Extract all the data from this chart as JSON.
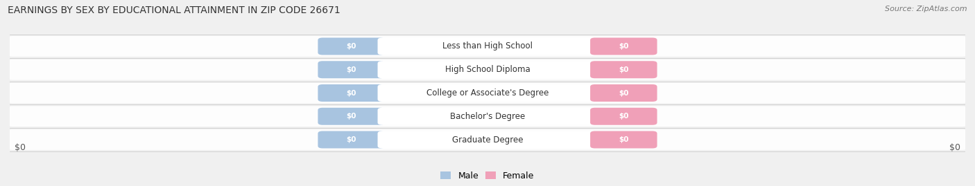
{
  "title": "EARNINGS BY SEX BY EDUCATIONAL ATTAINMENT IN ZIP CODE 26671",
  "source": "Source: ZipAtlas.com",
  "categories": [
    "Less than High School",
    "High School Diploma",
    "College or Associate's Degree",
    "Bachelor's Degree",
    "Graduate Degree"
  ],
  "male_values": [
    0,
    0,
    0,
    0,
    0
  ],
  "female_values": [
    0,
    0,
    0,
    0,
    0
  ],
  "male_color": "#a8c4e0",
  "female_color": "#f0a0b8",
  "male_label": "Male",
  "female_label": "Female",
  "background_color": "#f0f0f0",
  "row_bg_color": "#e8e8e8",
  "xlabel_left": "$0",
  "xlabel_right": "$0",
  "title_fontsize": 10,
  "source_fontsize": 8
}
